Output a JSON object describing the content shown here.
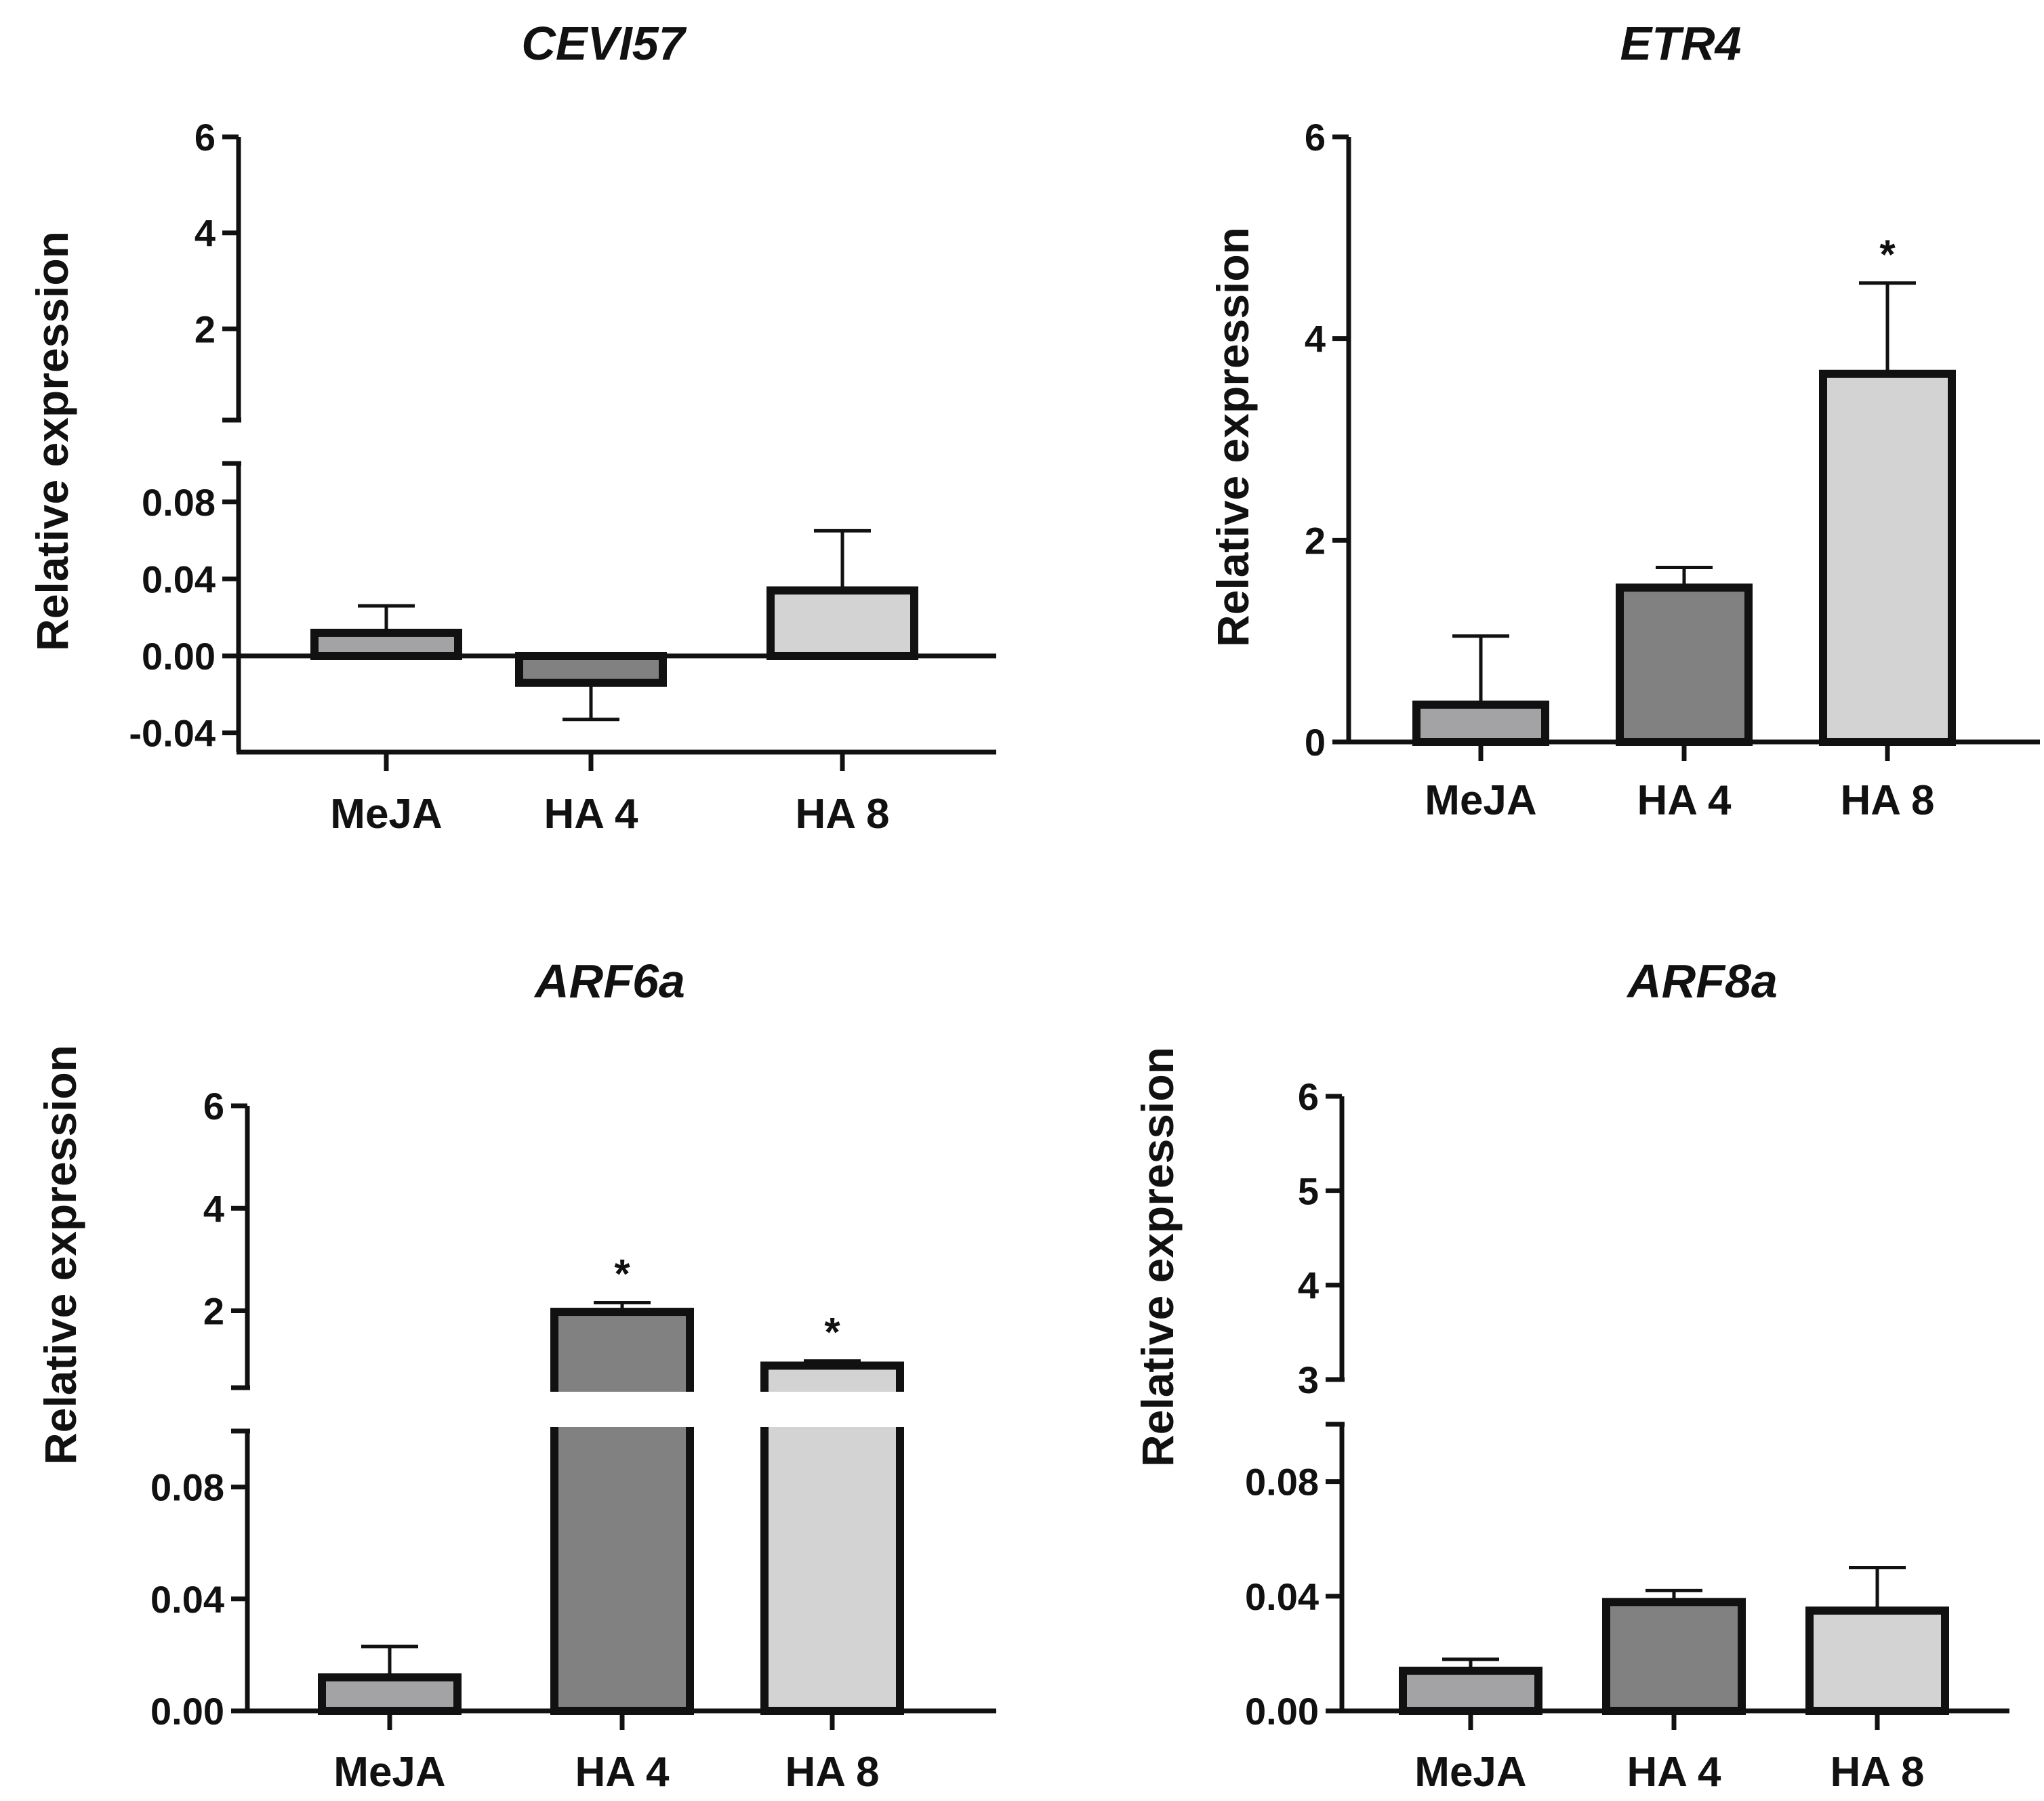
{
  "figure": {
    "colors": {
      "MeJA": "#a3a3a6",
      "HA 4": "#818181",
      "HA 8": "#d3d3d3",
      "axis": "#111111"
    }
  },
  "chart_data": [
    {
      "id": "cevi57",
      "type": "bar",
      "title": "CEVI57",
      "ylabel": "Relative expression",
      "xlabel": "",
      "categories": [
        "MeJA",
        "HA 4",
        "HA 8"
      ],
      "values": [
        0.012,
        -0.014,
        0.034
      ],
      "errors": [
        0.014,
        0.019,
        0.031
      ],
      "significance": [
        "",
        "",
        ""
      ],
      "broken_axis": true,
      "upper_ylim": [
        0.1,
        6
      ],
      "upper_ticks": [
        2,
        4,
        6
      ],
      "upper_tick_labels": [
        "2",
        "4",
        "6"
      ],
      "lower_ylim": [
        -0.05,
        0.1
      ],
      "lower_ticks": [
        -0.04,
        0,
        0.04,
        0.08
      ],
      "lower_tick_labels": [
        "-0.04",
        "0.00",
        "0.04",
        "0.08"
      ]
    },
    {
      "id": "etr4",
      "type": "bar",
      "title": "ETR4",
      "ylabel": "Relative expression",
      "xlabel": "",
      "categories": [
        "MeJA",
        "HA 4",
        "HA 8"
      ],
      "values": [
        0.37,
        1.53,
        3.65
      ],
      "errors": [
        0.68,
        0.2,
        0.9
      ],
      "significance": [
        "",
        "",
        "*"
      ],
      "broken_axis": false,
      "ylim": [
        0,
        6
      ],
      "ticks": [
        0,
        2,
        4,
        6
      ],
      "tick_labels": [
        "0",
        "2",
        "4",
        "6"
      ]
    },
    {
      "id": "arf6a",
      "type": "bar",
      "title": "ARF6a",
      "ylabel": "Relative expression",
      "xlabel": "",
      "categories": [
        "MeJA",
        "HA 4",
        "HA 8"
      ],
      "values": [
        0.012,
        1.98,
        0.93
      ],
      "errors": [
        0.011,
        0.18,
        0.09
      ],
      "significance": [
        "",
        "*",
        "*"
      ],
      "broken_axis": true,
      "upper_ylim": [
        0.5,
        6
      ],
      "upper_ticks": [
        2,
        4,
        6
      ],
      "upper_tick_labels": [
        "2",
        "4",
        "6"
      ],
      "lower_ylim": [
        0,
        0.1
      ],
      "lower_ticks": [
        0,
        0.04,
        0.08
      ],
      "lower_tick_labels": [
        "0.00",
        "0.04",
        "0.08"
      ]
    },
    {
      "id": "arf8a",
      "type": "bar",
      "title": "ARF8a",
      "ylabel": "Relative expression",
      "xlabel": "",
      "categories": [
        "MeJA",
        "HA 4",
        "HA 8"
      ],
      "values": [
        0.014,
        0.038,
        0.035
      ],
      "errors": [
        0.004,
        0.004,
        0.015
      ],
      "significance": [
        "",
        "",
        ""
      ],
      "broken_axis": true,
      "upper_ylim": [
        3,
        6
      ],
      "upper_ticks": [
        3,
        4,
        5,
        6
      ],
      "upper_tick_labels": [
        "3",
        "4",
        "5",
        "6"
      ],
      "lower_ylim": [
        0,
        0.1
      ],
      "lower_ticks": [
        0,
        0.04,
        0.08
      ],
      "lower_tick_labels": [
        "0.00",
        "0.04",
        "0.08"
      ]
    }
  ]
}
